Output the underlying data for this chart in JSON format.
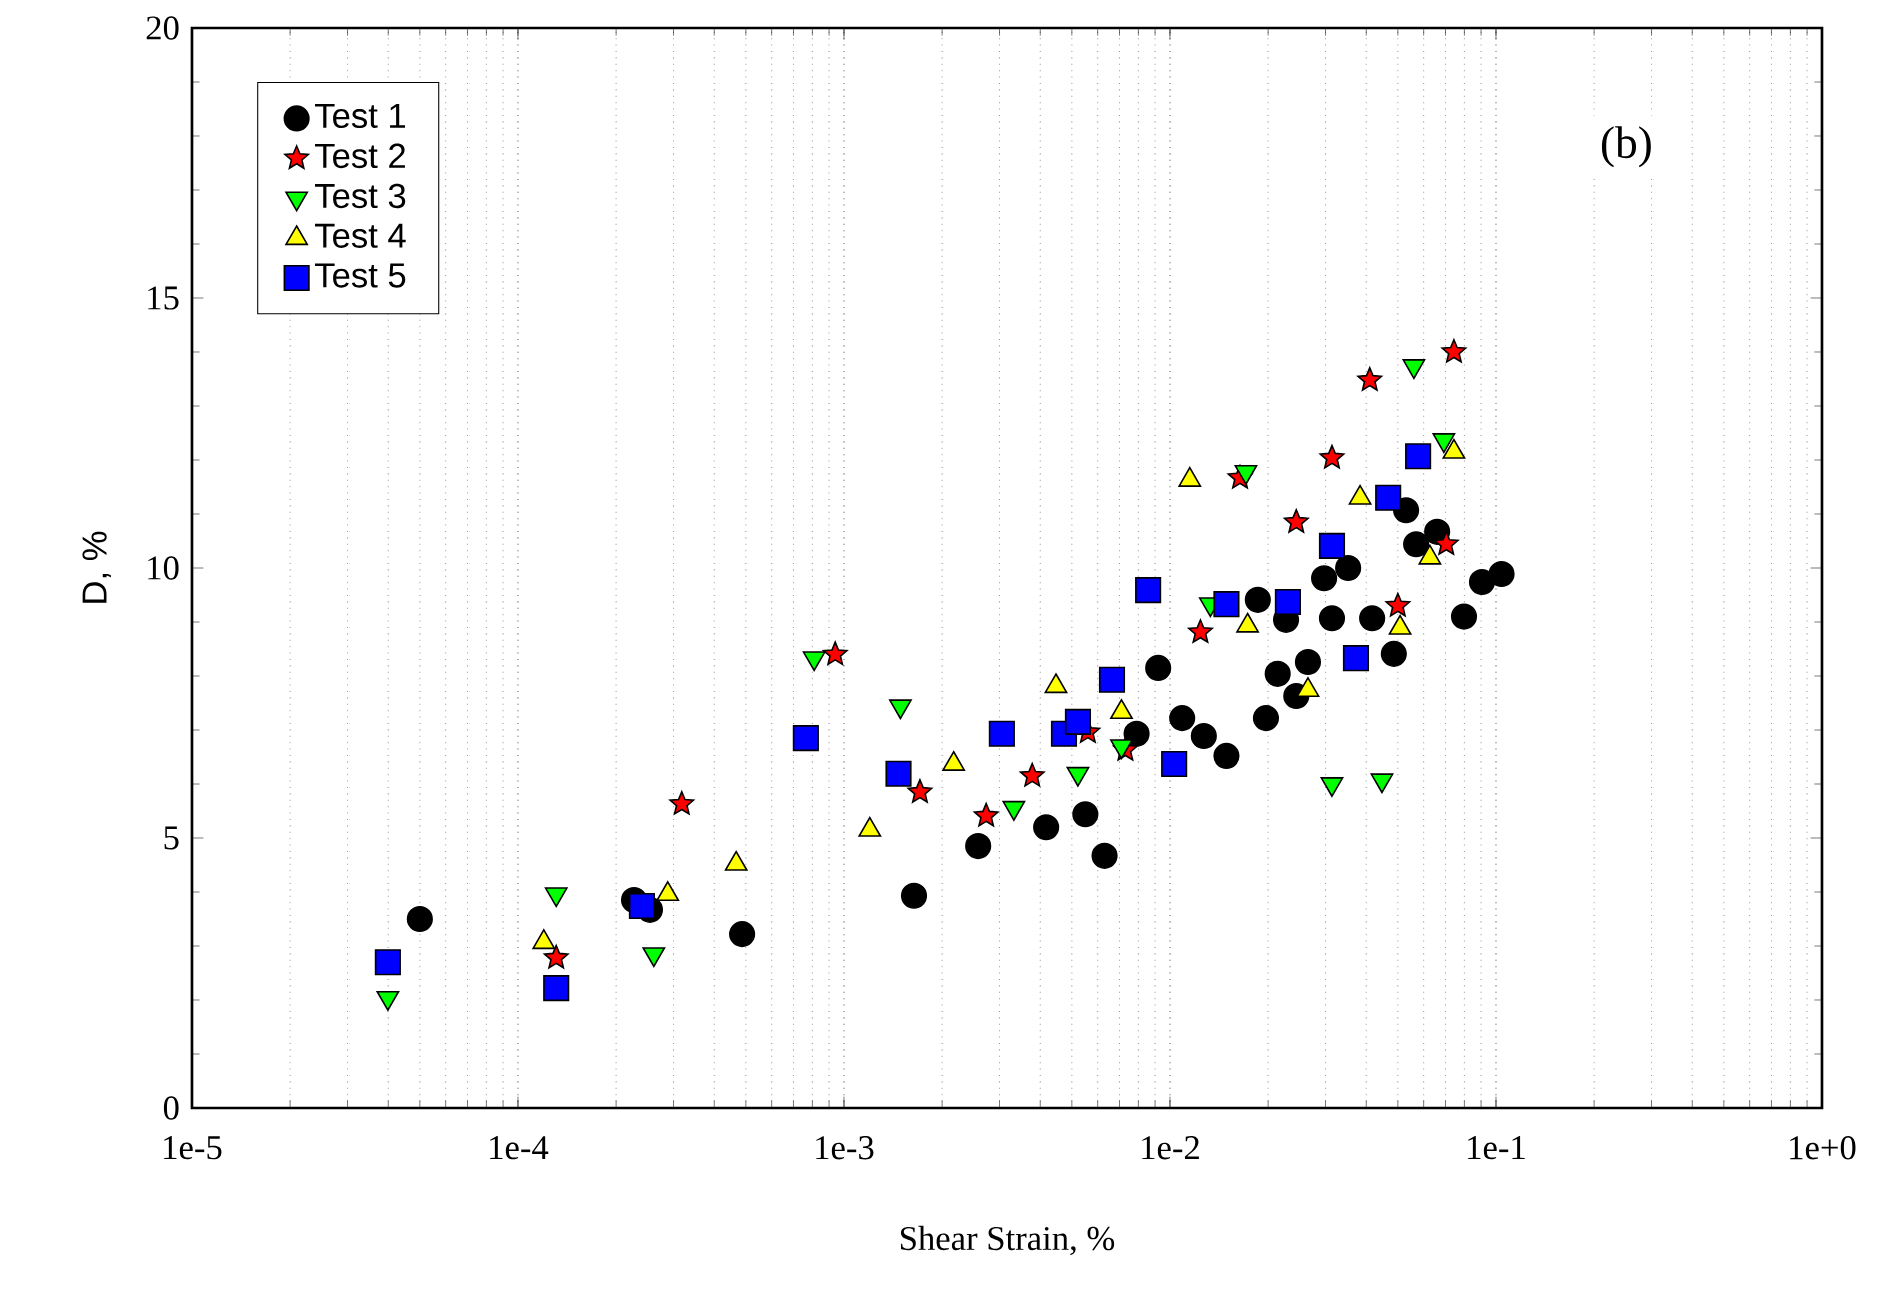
{
  "chart_data": {
    "type": "scatter",
    "xlabel": "Shear Strain, %",
    "ylabel": "D, %",
    "log": "x",
    "xlim": [
      1e-05,
      1
    ],
    "ylim": [
      0,
      20
    ],
    "xticks": [
      {
        "value": 1e-05,
        "label": "1e-5"
      },
      {
        "value": 0.0001,
        "label": "1e-4"
      },
      {
        "value": 0.001,
        "label": "1e-3"
      },
      {
        "value": 0.01,
        "label": "1e-2"
      },
      {
        "value": 0.1,
        "label": "1e-1"
      },
      {
        "value": 1,
        "label": "1e+0"
      }
    ],
    "yticks": [
      0,
      5,
      10,
      15,
      20
    ],
    "grid": "x",
    "legend": "top left",
    "annotations": [
      "(b)"
    ],
    "series": [
      {
        "name": "Test 1",
        "color": "#000000",
        "marker": "circle",
        "x": [
          5e-05,
          0.000227,
          0.000254,
          0.000487,
          0.00164,
          0.00258,
          0.00417,
          0.0055,
          0.0063,
          0.0079,
          0.0092,
          0.0109,
          0.0127,
          0.0149,
          0.0186,
          0.0197,
          0.0214,
          0.0227,
          0.0244,
          0.0265,
          0.0297,
          0.0314,
          0.0352,
          0.0417,
          0.0486,
          0.053,
          0.0569,
          0.066,
          0.0798,
          0.0906,
          0.104
        ],
        "values": [
          3.5,
          3.85,
          3.67,
          3.22,
          3.93,
          4.85,
          5.2,
          5.44,
          4.67,
          6.93,
          8.15,
          7.22,
          6.89,
          6.52,
          9.41,
          7.22,
          8.04,
          9.04,
          7.63,
          8.26,
          9.81,
          9.07,
          10.0,
          9.07,
          8.41,
          11.07,
          10.44,
          10.67,
          9.1,
          9.74,
          9.89
        ]
      },
      {
        "name": "Test 2",
        "color": "#ff0000",
        "marker": "star",
        "x": [
          0.000131,
          0.000318,
          0.00094,
          0.00171,
          0.00273,
          0.00378,
          0.0056,
          0.0073,
          0.0124,
          0.0164,
          0.0244,
          0.0314,
          0.041,
          0.05,
          0.0704,
          0.0743
        ],
        "values": [
          2.78,
          5.63,
          8.4,
          5.85,
          5.41,
          6.15,
          6.96,
          6.63,
          8.81,
          11.67,
          10.85,
          12.04,
          13.48,
          9.3,
          10.44,
          14.0
        ]
      },
      {
        "name": "Test 3",
        "color": "#00ff00",
        "marker": "triangle_down",
        "x": [
          3.99e-05,
          0.000131,
          0.000261,
          0.00081,
          0.00149,
          0.00332,
          0.00522,
          0.0071,
          0.0133,
          0.0171,
          0.0314,
          0.0447,
          0.056,
          0.0692
        ],
        "values": [
          2.04,
          3.96,
          2.85,
          8.33,
          7.44,
          5.56,
          6.19,
          6.7,
          9.33,
          11.78,
          6.0,
          6.07,
          13.74,
          12.37
        ]
      },
      {
        "name": "Test 4",
        "color": "#ffff00",
        "marker": "triangle",
        "x": [
          0.00012,
          0.000288,
          0.000467,
          0.0012,
          0.00217,
          0.00447,
          0.0071,
          0.0115,
          0.0173,
          0.0265,
          0.0383,
          0.0508,
          0.0627,
          0.0743
        ],
        "values": [
          3.07,
          3.96,
          4.52,
          5.15,
          6.37,
          7.81,
          7.33,
          11.63,
          8.93,
          7.74,
          11.3,
          8.89,
          10.19,
          12.15
        ]
      },
      {
        "name": "Test 5",
        "color": "#0000ff",
        "marker": "square",
        "x": [
          3.99e-05,
          0.000131,
          0.00024,
          0.000764,
          0.00147,
          0.00305,
          0.00473,
          0.00522,
          0.00664,
          0.00857,
          0.0103,
          0.0149,
          0.023,
          0.0314,
          0.0372,
          0.0467,
          0.0577
        ],
        "values": [
          2.7,
          2.22,
          3.74,
          6.85,
          6.19,
          6.93,
          6.93,
          7.15,
          7.93,
          9.59,
          6.37,
          9.33,
          9.37,
          10.41,
          8.33,
          11.3,
          12.07
        ]
      }
    ]
  }
}
